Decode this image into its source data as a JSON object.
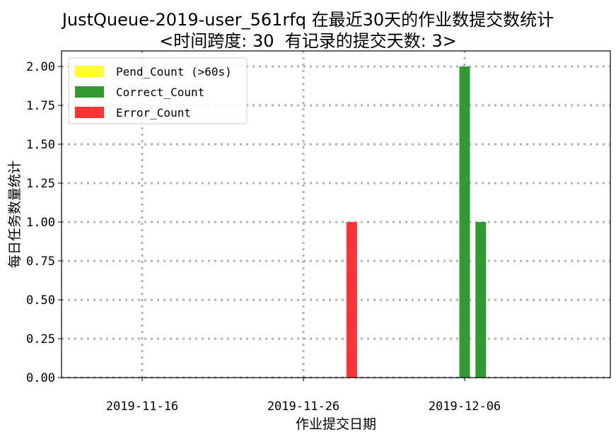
{
  "chart_data": {
    "type": "bar",
    "title_line1": "JustQueue-2019-user_561rfq 在最近30天的作业数提交数统计",
    "title_line2": "<时间跨度: 30  有记录的提交天数: 3>",
    "xlabel": "作业提交日期",
    "ylabel": "每日任务数量统计",
    "ylim": [
      0,
      2.1
    ],
    "y_ticks": [
      0.0,
      0.25,
      0.5,
      0.75,
      1.0,
      1.25,
      1.5,
      1.75,
      2.0
    ],
    "y_tick_labels": [
      "0.00",
      "0.25",
      "0.50",
      "0.75",
      "1.00",
      "1.25",
      "1.50",
      "1.75",
      "2.00"
    ],
    "x_ticks": [
      "2019-11-16",
      "2019-11-26",
      "2019-12-06"
    ],
    "grid": true,
    "legend_position": "top-left",
    "series": [
      {
        "name": "Pend_Count (>60s)",
        "color": "#ffff33",
        "points": []
      },
      {
        "name": "Correct_Count",
        "color": "#339933",
        "points": [
          {
            "date": "2019-12-06",
            "value": 2
          },
          {
            "date": "2019-12-07",
            "value": 1
          }
        ]
      },
      {
        "name": "Error_Count",
        "color": "#ff3333",
        "points": [
          {
            "date": "2019-11-29",
            "value": 1
          }
        ]
      }
    ]
  }
}
